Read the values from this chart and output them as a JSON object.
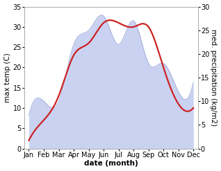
{
  "months": [
    "Jan",
    "Feb",
    "Mar",
    "Apr",
    "May",
    "Jun",
    "Jul",
    "Aug",
    "Sep",
    "Oct",
    "Nov",
    "Dec"
  ],
  "x_positions": [
    0,
    1,
    2,
    3,
    4,
    5,
    6,
    7,
    8,
    9,
    10,
    11
  ],
  "temperature": [
    2,
    7,
    13,
    23,
    26,
    31,
    31,
    30,
    30,
    20,
    11,
    10
  ],
  "precipitation": [
    7,
    10,
    10,
    22,
    25,
    28,
    22,
    27,
    18,
    18,
    12,
    14
  ],
  "temp_color": "#cc2222",
  "precip_fill_color": "#c5cdf0",
  "precip_edge_color": "#9aa5d8",
  "ylim_left": [
    0,
    35
  ],
  "ylim_right": [
    0,
    30
  ],
  "yticks_left": [
    0,
    5,
    10,
    15,
    20,
    25,
    30,
    35
  ],
  "yticks_right": [
    0,
    5,
    10,
    15,
    20,
    25,
    30
  ],
  "xlabel": "date (month)",
  "ylabel_left": "max temp (C)",
  "ylabel_right": "med. precipitation (kg/m2)",
  "label_fontsize": 7.5,
  "tick_fontsize": 7,
  "line_width": 1.6,
  "background_color": "#ffffff",
  "spine_color": "#aaaaaa"
}
